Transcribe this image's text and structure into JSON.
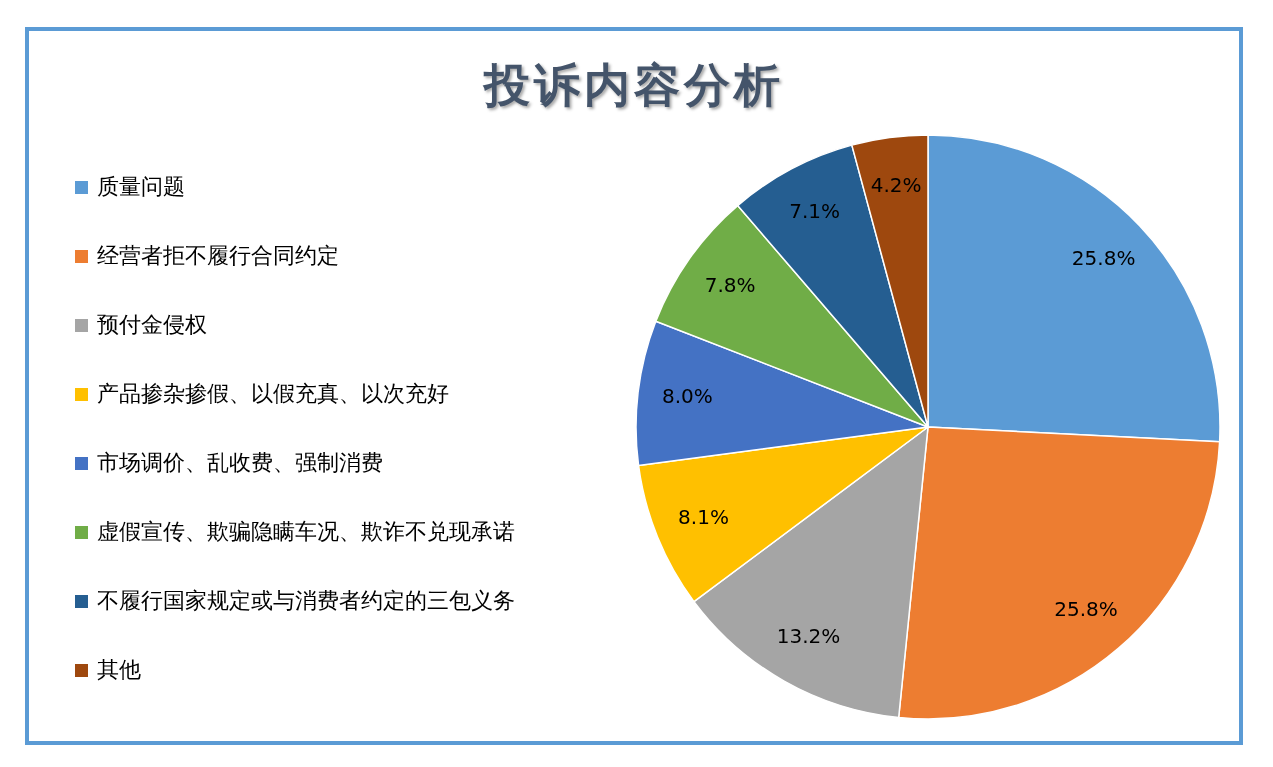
{
  "chart_data": {
    "type": "pie",
    "title": "投诉内容分析",
    "categories": [
      "质量问题",
      "经营者拒不履行合同约定",
      "预付金侵权",
      "产品掺杂掺假、以假充真、以次充好",
      "市场调价、乱收费、强制消费",
      "虚假宣传、欺骗隐瞒车况、欺诈不兑现承诺",
      "不履行国家规定或与消费者约定的三包义务",
      "其他"
    ],
    "values": [
      25.8,
      25.8,
      13.2,
      8.1,
      8.0,
      7.8,
      7.1,
      4.2
    ],
    "value_labels": [
      "25.8%",
      "25.8%",
      "13.2%",
      "8.1%",
      "8.0%",
      "7.8%",
      "7.1%",
      "4.2%"
    ],
    "colors": [
      "#5b9bd5",
      "#ed7d31",
      "#a5a5a5",
      "#ffc000",
      "#4472c4",
      "#70ad47",
      "#255e91",
      "#9e480e"
    ],
    "legend": "left"
  }
}
